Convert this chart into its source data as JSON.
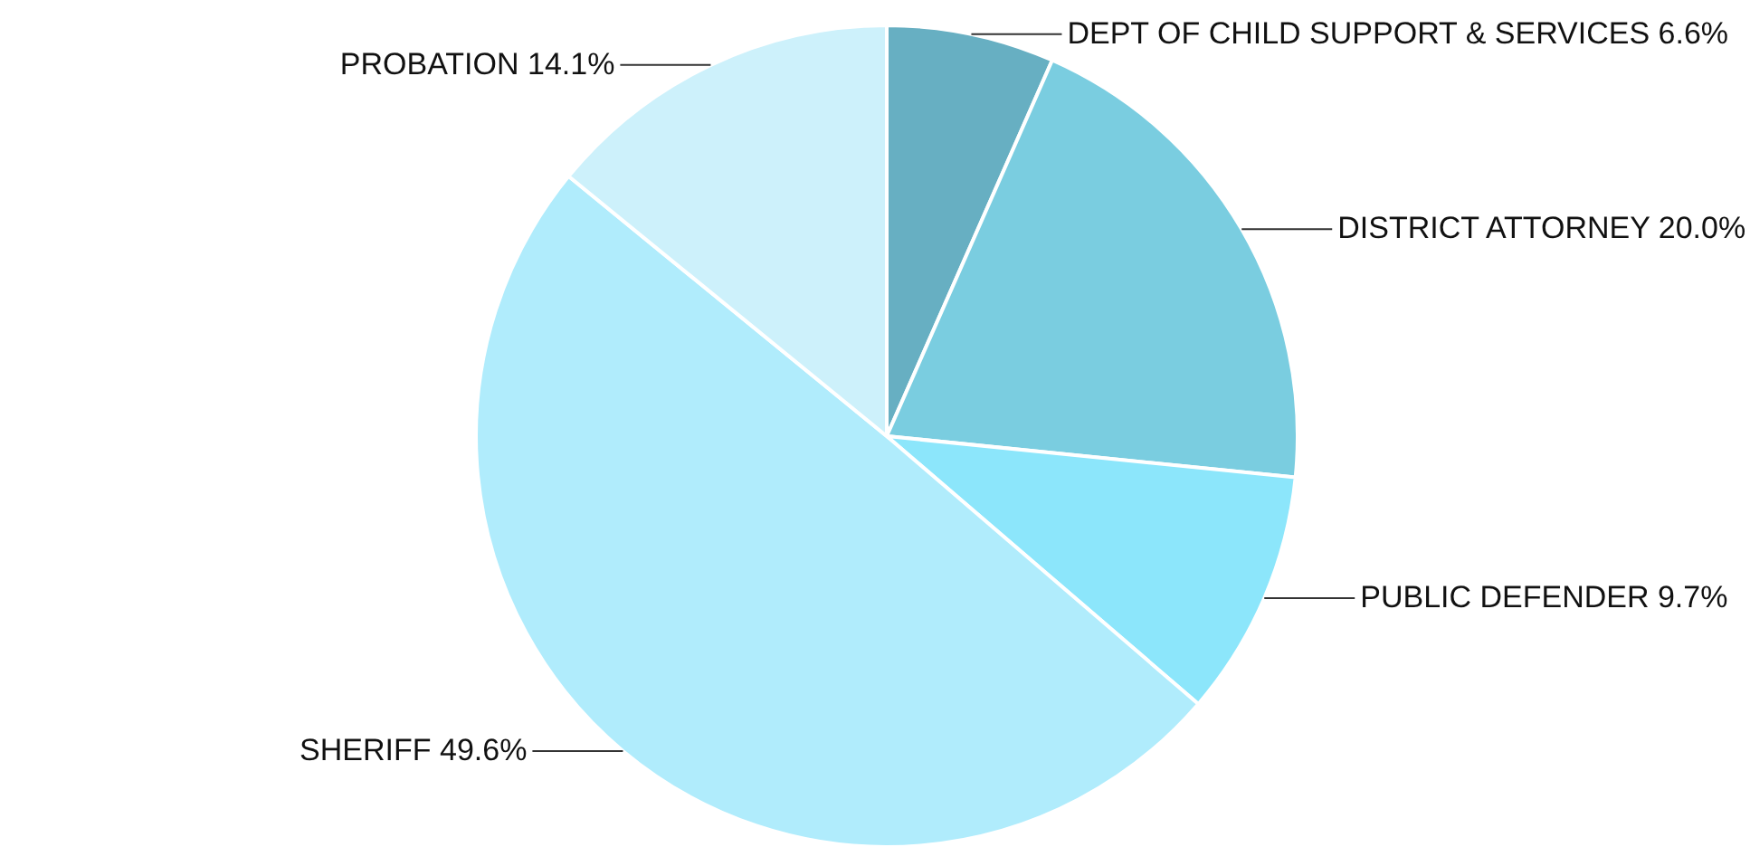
{
  "chart_data": {
    "type": "pie",
    "categories": [
      "DEPT OF CHILD SUPPORT & SERVICES",
      "DISTRICT ATTORNEY",
      "PUBLIC DEFENDER",
      "SHERIFF",
      "PROBATION"
    ],
    "values": [
      6.6,
      20.0,
      9.7,
      49.6,
      14.1
    ],
    "value_labels": [
      "6.6%",
      "20.0%",
      "9.7%",
      "49.6%",
      "14.1%"
    ],
    "colors": [
      "#67afc2",
      "#7acde0",
      "#8ce6fb",
      "#b0ecfc",
      "#cdf1fb"
    ]
  }
}
